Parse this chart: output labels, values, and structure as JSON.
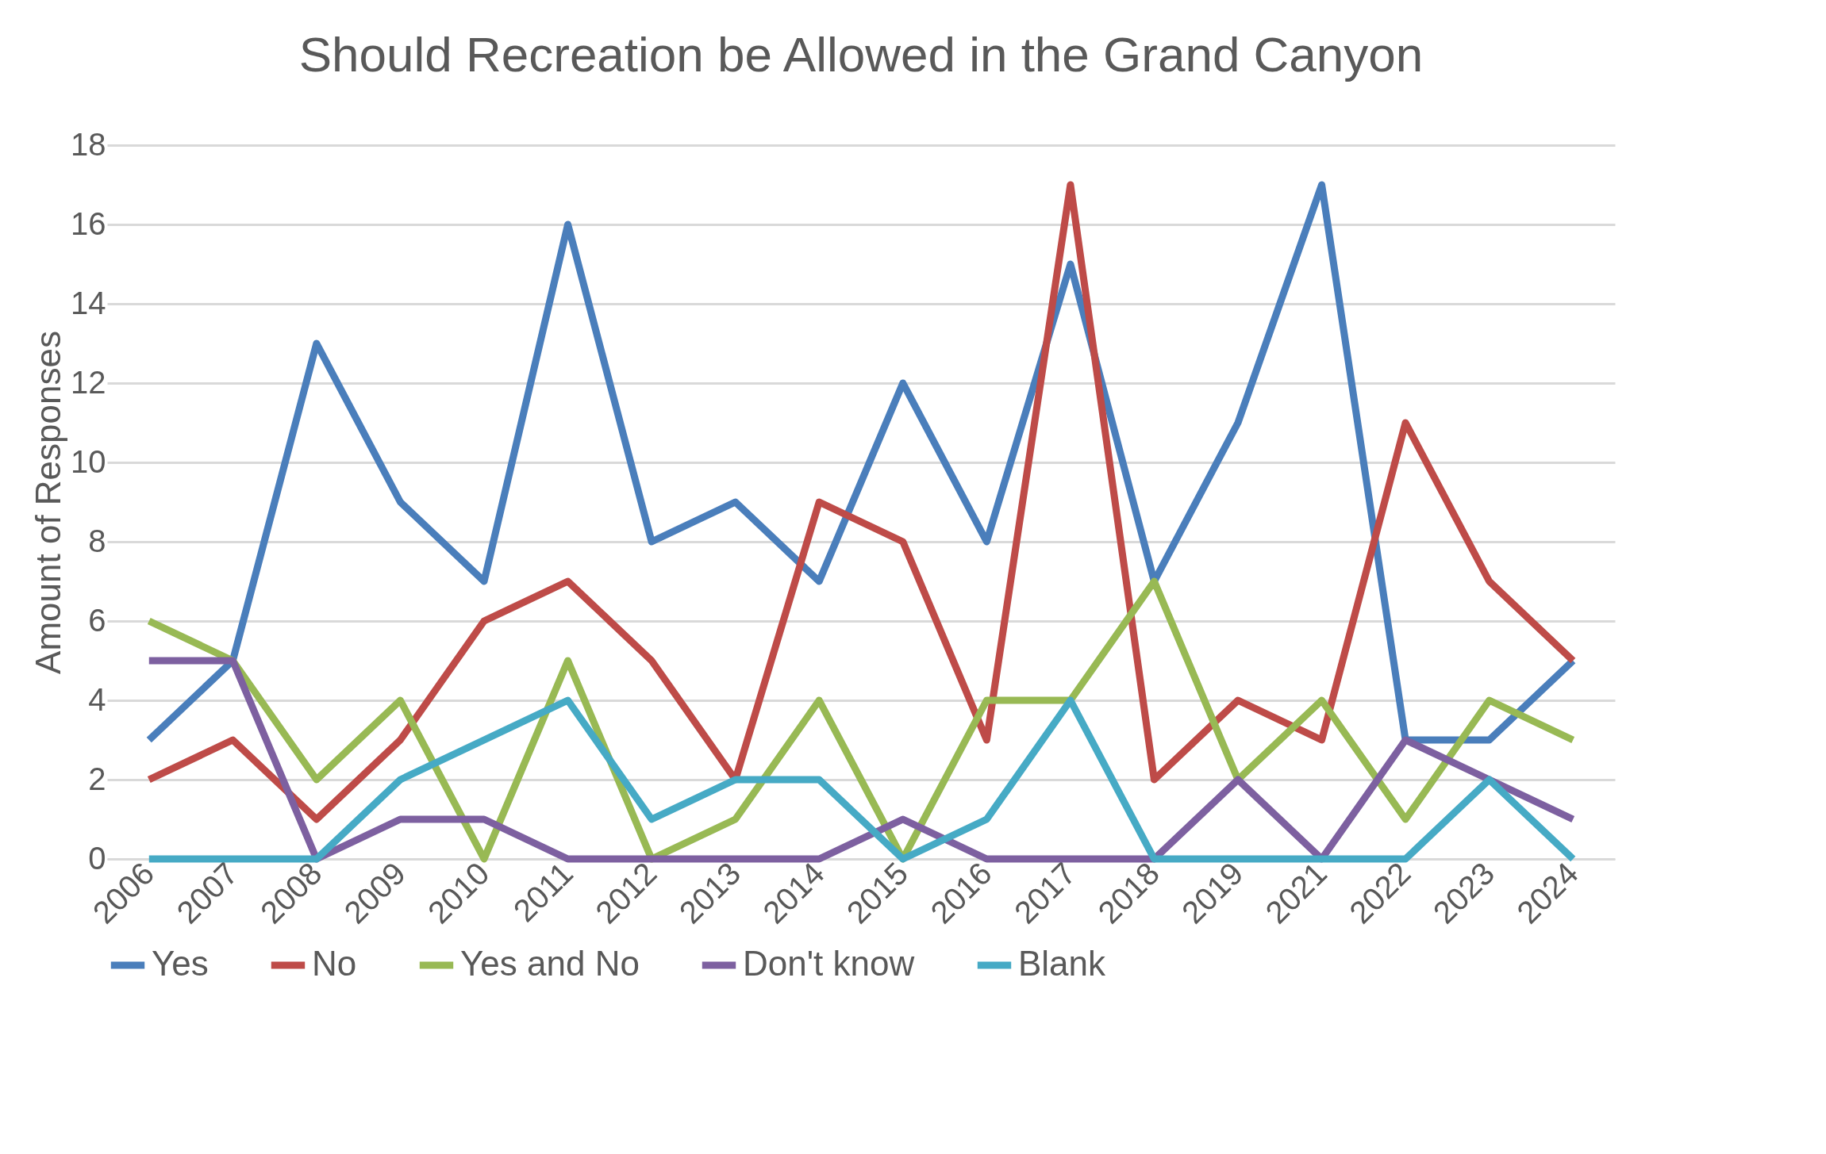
{
  "chart_data": {
    "type": "line",
    "title": "Should Recreation be Allowed in the Grand Canyon",
    "ylabel": "Amount of Responses",
    "categories": [
      "2006",
      "2007",
      "2008",
      "2009",
      "2010",
      "2011",
      "2012",
      "2013",
      "2014",
      "2015",
      "2016",
      "2017",
      "2018",
      "2019",
      "2021",
      "2022",
      "2023",
      "2024"
    ],
    "ylim": [
      0,
      18
    ],
    "yticks": [
      0,
      2,
      4,
      6,
      8,
      10,
      12,
      14,
      16,
      18
    ],
    "grid": "y",
    "legend": "bottom",
    "marker": "none",
    "line_style": "solid",
    "series": [
      {
        "name": "Yes",
        "color": "#4a7ebb",
        "values": [
          3,
          5,
          13,
          9,
          7,
          16,
          8,
          9,
          7,
          12,
          8,
          15,
          7,
          11,
          17,
          3,
          3,
          5
        ]
      },
      {
        "name": "No",
        "color": "#be4b48",
        "values": [
          2,
          3,
          1,
          3,
          6,
          7,
          5,
          2,
          9,
          8,
          3,
          17,
          2,
          4,
          3,
          11,
          7,
          5
        ]
      },
      {
        "name": "Yes and No",
        "color": "#98b954",
        "values": [
          6,
          5,
          2,
          4,
          0,
          5,
          0,
          1,
          4,
          0,
          4,
          4,
          7,
          2,
          4,
          1,
          4,
          3
        ]
      },
      {
        "name": "Don't know",
        "color": "#7d60a0",
        "values": [
          5,
          5,
          0,
          1,
          1,
          0,
          0,
          0,
          0,
          1,
          0,
          0,
          0,
          2,
          0,
          3,
          2,
          1
        ]
      },
      {
        "name": "Blank",
        "color": "#46aac5",
        "values": [
          0,
          0,
          0,
          2,
          3,
          4,
          1,
          2,
          2,
          0,
          1,
          4,
          0,
          0,
          0,
          0,
          2,
          0
        ]
      }
    ]
  }
}
